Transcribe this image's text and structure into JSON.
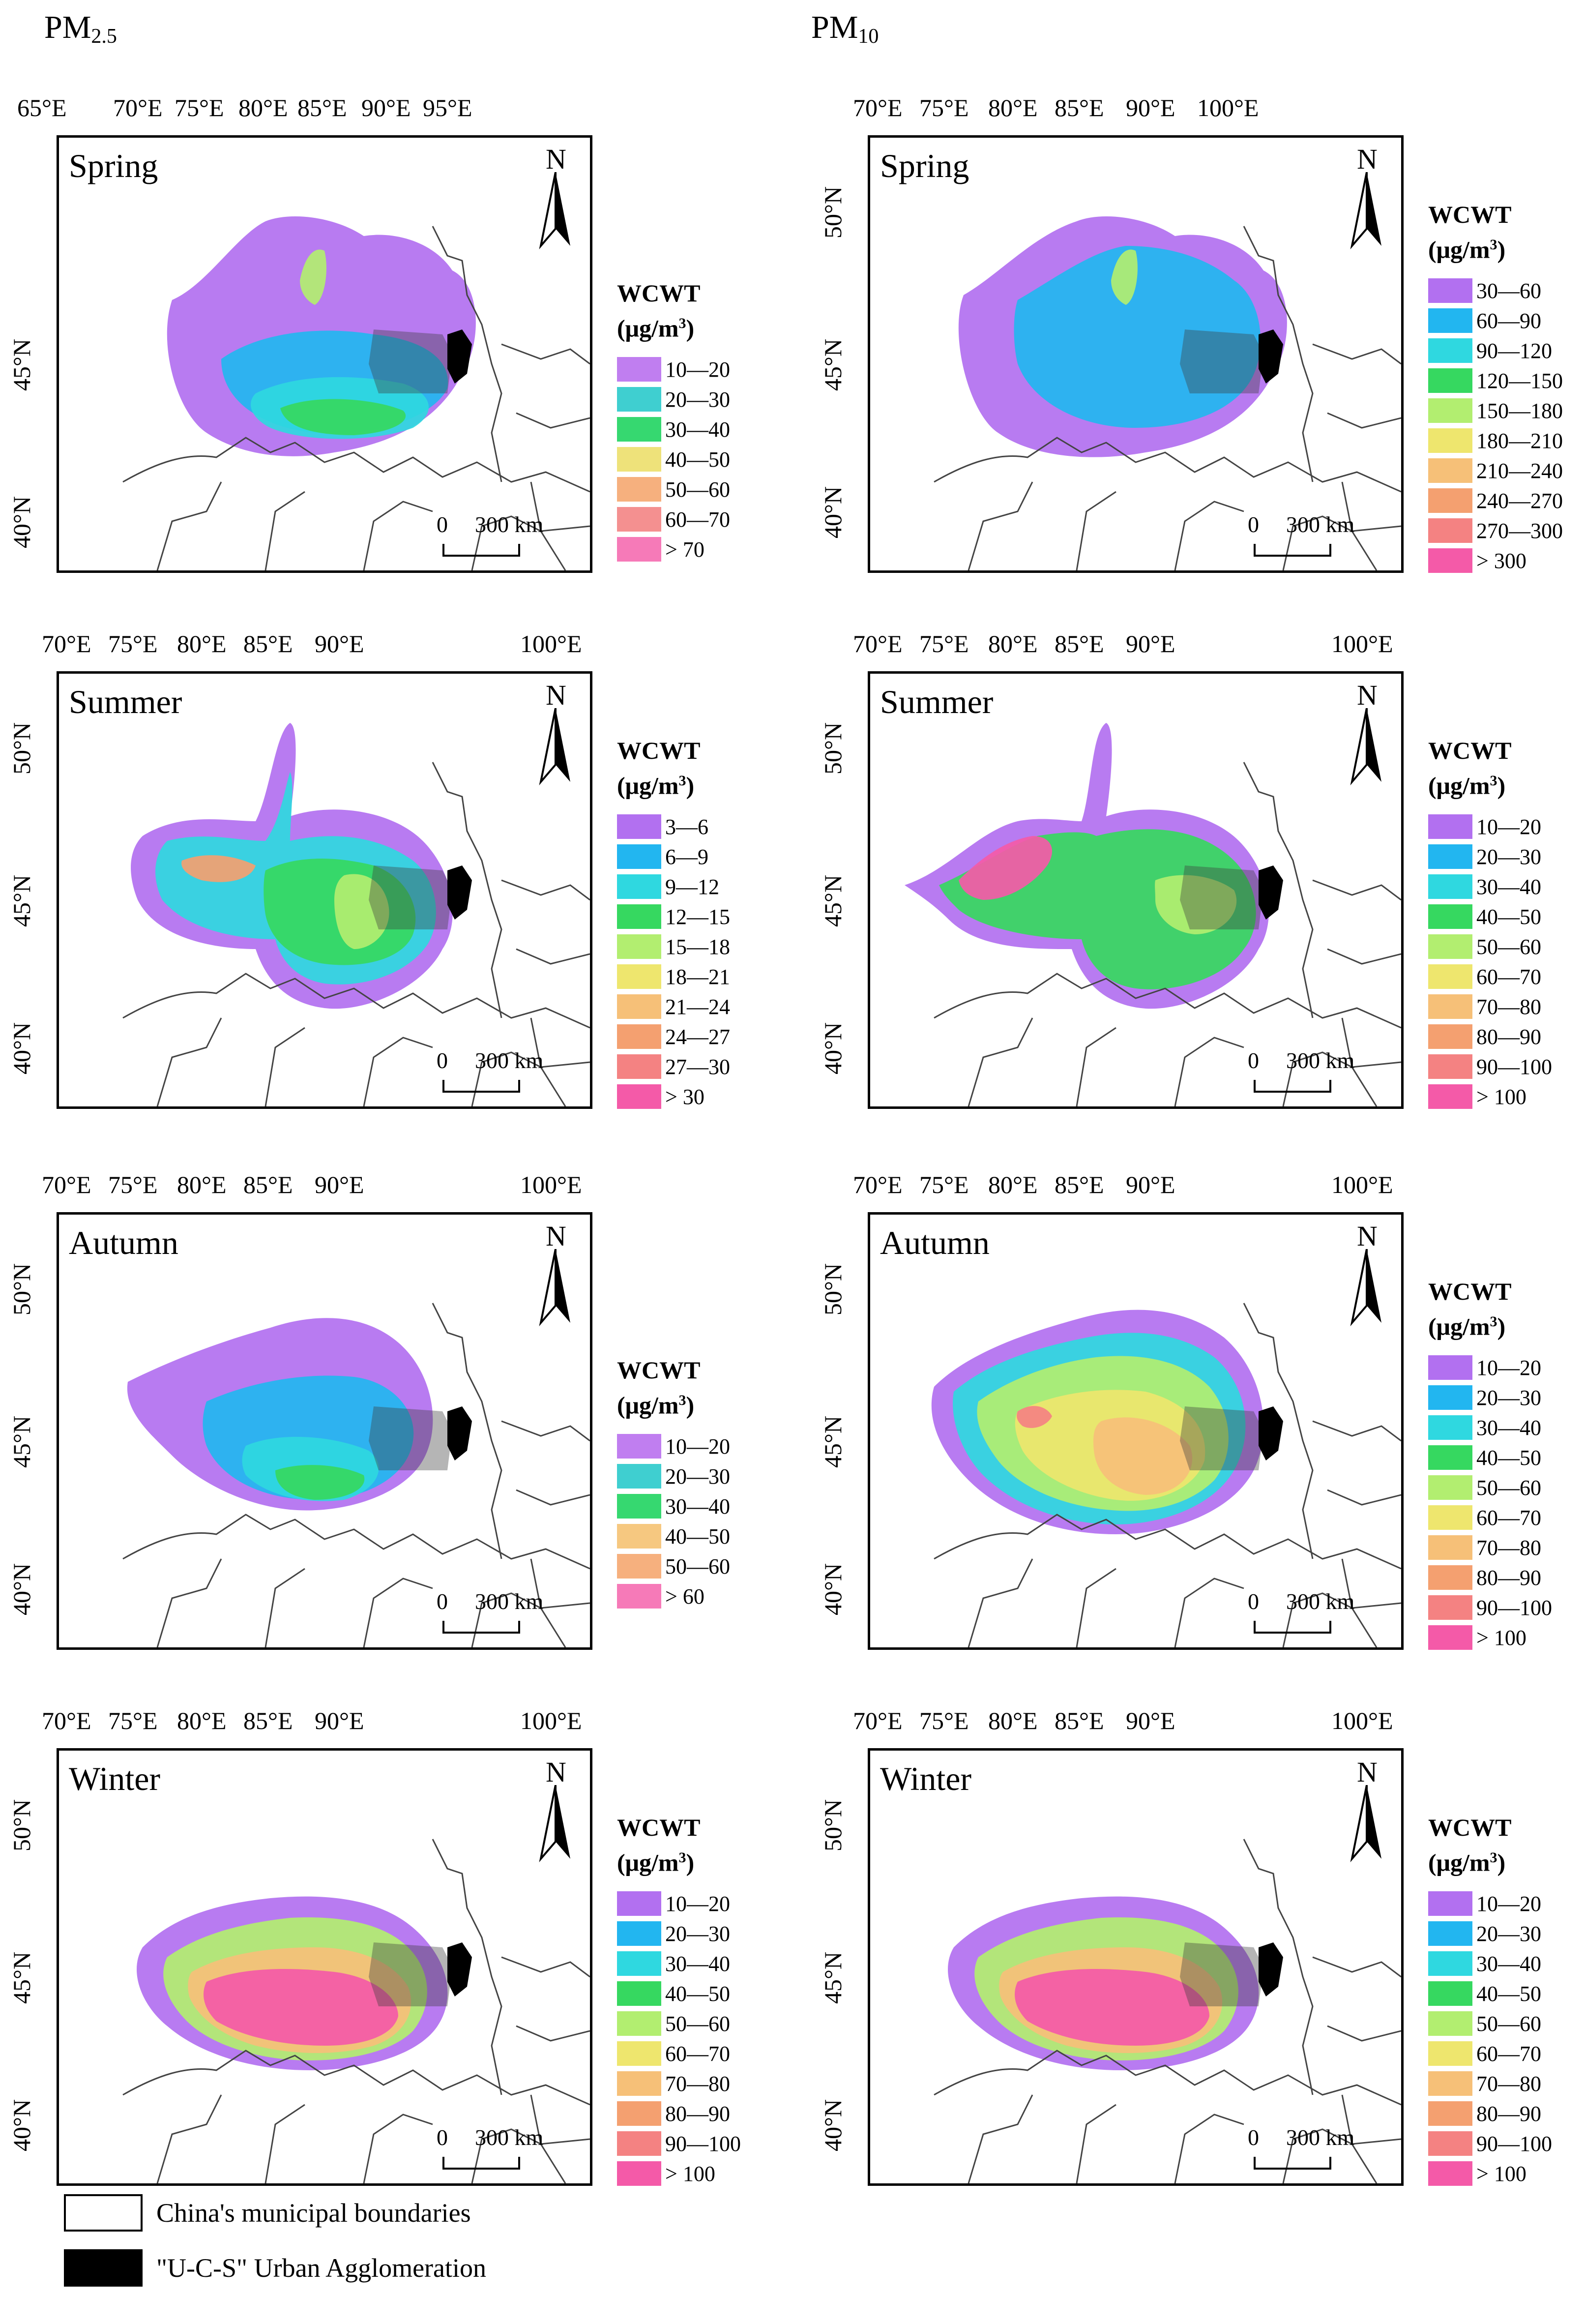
{
  "columns": [
    {
      "title": "PM",
      "sub": "2.5"
    },
    {
      "title": "PM",
      "sub": "10"
    }
  ],
  "legend_title": "WCWT",
  "legend_unit_prefix": "(μg/m",
  "legend_unit_sup": "3",
  "legend_unit_suffix": ")",
  "north_letter": "N",
  "scale": {
    "zero": "0",
    "label": "300 km"
  },
  "colors": [
    "#b270f0",
    "#22b6f0",
    "#2fd8e0",
    "#36d860",
    "#b2ee70",
    "#eee66e",
    "#f6c078",
    "#f4a070",
    "#f48282",
    "#f45aa8"
  ],
  "panels": [
    {
      "season": "Spring",
      "lon_labels": [
        "65°E",
        "70°E",
        "75°E",
        "80°E",
        "85°E",
        "90°E",
        "95°E"
      ],
      "lat_labels": [
        "45°N",
        "40°N"
      ],
      "legend": [
        "10—20",
        "20—30",
        "30—40",
        "40—50",
        "50—60",
        "60—70",
        "> 70"
      ],
      "legend_colors": [
        "#c07ef0",
        "#3fcfd0",
        "#36d870",
        "#eee27a",
        "#f6b07e",
        "#f49090",
        "#f67ab8"
      ]
    },
    {
      "season": "Spring",
      "lon_labels": [
        "70°E",
        "75°E",
        "80°E",
        "85°E",
        "90°E",
        "100°E"
      ],
      "lat_labels": [
        "50°N",
        "45°N",
        "40°N"
      ],
      "legend": [
        "30—60",
        "60—90",
        "90—120",
        "120—150",
        "150—180",
        "180—210",
        "210—240",
        "240—270",
        "270—300",
        "> 300"
      ],
      "legend_colors": [
        "#b270f0",
        "#22b6f0",
        "#2fd8e0",
        "#36d860",
        "#b2ee70",
        "#eee66e",
        "#f6c078",
        "#f4a070",
        "#f48282",
        "#f45aa8"
      ]
    },
    {
      "season": "Summer",
      "lon_labels": [
        "70°E",
        "75°E",
        "80°E",
        "85°E",
        "90°E",
        "100°E"
      ],
      "lat_labels": [
        "50°N",
        "45°N",
        "40°N"
      ],
      "legend": [
        "3—6",
        "6—9",
        "9—12",
        "12—15",
        "15—18",
        "18—21",
        "21—24",
        "24—27",
        "27—30",
        "> 30"
      ],
      "legend_colors": [
        "#b270f0",
        "#22b6f0",
        "#2fd8e0",
        "#36d860",
        "#b2ee70",
        "#eee66e",
        "#f6c078",
        "#f4a070",
        "#f48282",
        "#f45aa8"
      ]
    },
    {
      "season": "Summer",
      "lon_labels": [
        "70°E",
        "75°E",
        "80°E",
        "85°E",
        "90°E",
        "100°E"
      ],
      "lat_labels": [
        "50°N",
        "45°N",
        "40°N"
      ],
      "legend": [
        "10—20",
        "20—30",
        "30—40",
        "40—50",
        "50—60",
        "60—70",
        "70—80",
        "80—90",
        "90—100",
        "> 100"
      ],
      "legend_colors": [
        "#b270f0",
        "#22b6f0",
        "#2fd8e0",
        "#36d860",
        "#b2ee70",
        "#eee66e",
        "#f6c078",
        "#f4a070",
        "#f48282",
        "#f45aa8"
      ]
    },
    {
      "season": "Autumn",
      "lon_labels": [
        "70°E",
        "75°E",
        "80°E",
        "85°E",
        "90°E",
        "100°E"
      ],
      "lat_labels": [
        "50°N",
        "45°N",
        "40°N"
      ],
      "legend": [
        "10—20",
        "20—30",
        "30—40",
        "40—50",
        "50—60",
        "> 60"
      ],
      "legend_colors": [
        "#c07ef0",
        "#3fcfd0",
        "#36d870",
        "#f6c880",
        "#f6b07e",
        "#f67ab8"
      ]
    },
    {
      "season": "Autumn",
      "lon_labels": [
        "70°E",
        "75°E",
        "80°E",
        "85°E",
        "90°E",
        "100°E"
      ],
      "lat_labels": [
        "50°N",
        "45°N",
        "40°N"
      ],
      "legend": [
        "10—20",
        "20—30",
        "30—40",
        "40—50",
        "50—60",
        "60—70",
        "70—80",
        "80—90",
        "90—100",
        "> 100"
      ],
      "legend_colors": [
        "#b270f0",
        "#22b6f0",
        "#2fd8e0",
        "#36d860",
        "#b2ee70",
        "#eee66e",
        "#f6c078",
        "#f4a070",
        "#f48282",
        "#f45aa8"
      ]
    },
    {
      "season": "Winter",
      "lon_labels": [
        "70°E",
        "75°E",
        "80°E",
        "85°E",
        "90°E",
        "100°E"
      ],
      "lat_labels": [
        "50°N",
        "45°N",
        "40°N"
      ],
      "legend": [
        "10—20",
        "20—30",
        "30—40",
        "40—50",
        "50—60",
        "60—70",
        "70—80",
        "80—90",
        "90—100",
        "> 100"
      ],
      "legend_colors": [
        "#b270f0",
        "#22b6f0",
        "#2fd8e0",
        "#36d860",
        "#b2ee70",
        "#eee66e",
        "#f6c078",
        "#f4a070",
        "#f48282",
        "#f45aa8"
      ]
    },
    {
      "season": "Winter",
      "lon_labels": [
        "70°E",
        "75°E",
        "80°E",
        "85°E",
        "90°E",
        "100°E"
      ],
      "lat_labels": [
        "50°N",
        "45°N",
        "40°N"
      ],
      "legend": [
        "10—20",
        "20—30",
        "30—40",
        "40—50",
        "50—60",
        "60—70",
        "70—80",
        "80—90",
        "90—100",
        "> 100"
      ],
      "legend_colors": [
        "#b270f0",
        "#22b6f0",
        "#2fd8e0",
        "#36d860",
        "#b2ee70",
        "#eee66e",
        "#f6c078",
        "#f4a070",
        "#f48282",
        "#f45aa8"
      ]
    }
  ],
  "bottom_legend": [
    {
      "label": "China's municipal boundaries",
      "swatch": "#ffffff"
    },
    {
      "label": "\"U-C-S\" Urban Agglomeration",
      "swatch": "#000000"
    }
  ]
}
